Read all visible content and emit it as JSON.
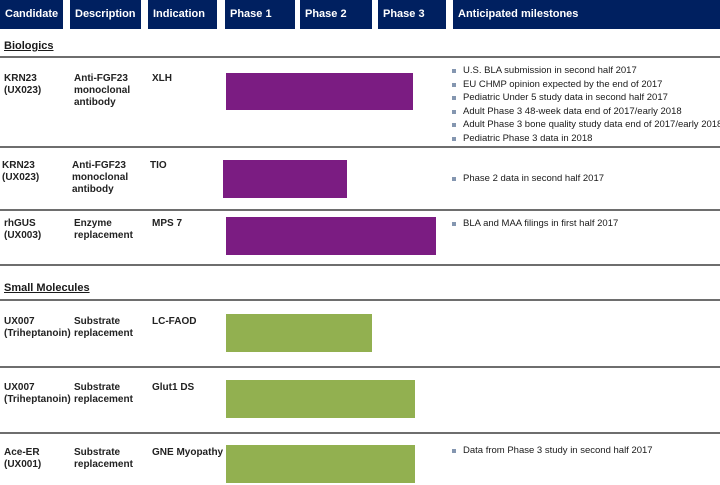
{
  "header": {
    "candidate": "Candidate",
    "description": "Description",
    "indication": "Indication",
    "phase1": "Phase 1",
    "phase2": "Phase 2",
    "phase3": "Phase 3",
    "milestones": "Anticipated milestones"
  },
  "colors": {
    "header_bg": "#002060",
    "biologics_bar": "#7b1c82",
    "small_molecule_bar": "#92b050"
  },
  "sections": {
    "biologics": "Biologics",
    "small_molecules": "Small Molecules"
  },
  "rows": [
    {
      "candidate": "KRN23",
      "candidate_code": "(UX023)",
      "description_lines": [
        "Anti-FGF23",
        "monoclonal",
        "antibody"
      ],
      "indication": "XLH",
      "progress_phase": 2.6,
      "milestones": [
        "U.S. BLA submission in second half 2017",
        "EU CHMP opinion expected by the end of 2017",
        "Pediatric Under 5 study data in second half 2017",
        "Adult Phase 3 48-week data end of 2017/early 2018",
        "Adult Phase 3 bone quality study data end of 2017/early 2018",
        "Pediatric Phase 3 data in 2018"
      ]
    },
    {
      "candidate": "KRN23",
      "candidate_code": "(UX023)",
      "description_lines": [
        "Anti-FGF23",
        "monoclonal",
        "antibody"
      ],
      "indication": "TIO",
      "progress_phase": 1.7,
      "milestones": [
        "Phase 2 data in second half 2017"
      ]
    },
    {
      "candidate": "rhGUS",
      "candidate_code": "(UX003)",
      "description_lines": [
        "Enzyme",
        "replacement"
      ],
      "indication": "MPS 7",
      "progress_phase": 2.9,
      "milestones": [
        "BLA and MAA filings in first half 2017"
      ]
    },
    {
      "candidate": "UX007",
      "candidate_code": "(Triheptanoin)",
      "description_lines": [
        "Substrate",
        "replacement"
      ],
      "indication": "LC-FAOD",
      "progress_phase": 2.0,
      "milestones": []
    },
    {
      "candidate": "UX007",
      "candidate_code": "(Triheptanoin)",
      "description_lines": [
        "Substrate",
        "replacement"
      ],
      "indication": "Glut1 DS",
      "progress_phase": 2.6,
      "milestones": []
    },
    {
      "candidate": "Ace-ER",
      "candidate_code": "(UX001)",
      "description_lines": [
        "Substrate",
        "replacement"
      ],
      "indication": "GNE Myopathy",
      "progress_phase": 2.6,
      "milestones": [
        "Data from Phase 3 study in second half 2017"
      ]
    }
  ]
}
